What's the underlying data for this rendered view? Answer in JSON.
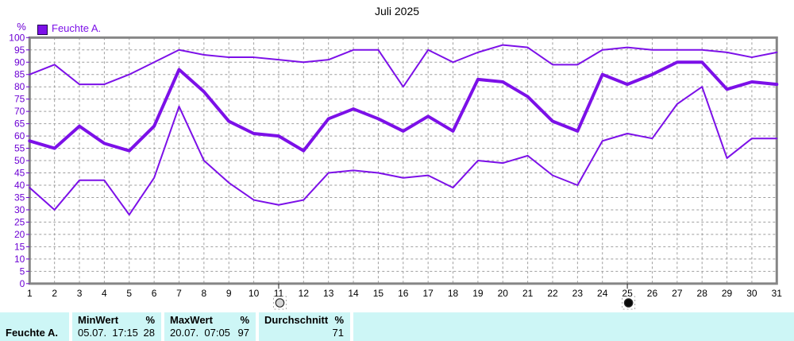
{
  "window": {
    "title": "Juli 2025"
  },
  "colors": {
    "series": "#7C10E8",
    "axis_text": "#6C00D4",
    "grid": "#9E9E9E",
    "frame": "#868686",
    "table_bg": "#CDF6F6",
    "day_label": "#000000"
  },
  "legend": {
    "label": "Feuchte A.",
    "unit": "%"
  },
  "chart_data": {
    "type": "line",
    "title": "Juli 2025",
    "ylabel": "%",
    "xlabel": "",
    "grid": true,
    "legend_position": "top-left",
    "ylim": [
      0,
      100
    ],
    "y_tick_step": 5,
    "x": [
      1,
      2,
      3,
      4,
      5,
      6,
      7,
      8,
      9,
      10,
      11,
      12,
      13,
      14,
      15,
      16,
      17,
      18,
      19,
      20,
      21,
      22,
      23,
      24,
      25,
      26,
      27,
      28,
      29,
      30,
      31
    ],
    "series": [
      {
        "key": "maximum",
        "name": "Feuchte A. Maximum",
        "values": [
          85,
          89,
          81,
          81,
          85,
          90,
          95,
          93,
          92,
          92,
          91,
          90,
          91,
          95,
          95,
          80,
          95,
          90,
          94,
          97,
          96,
          89,
          89,
          95,
          96,
          95,
          95,
          95,
          94,
          92,
          94
        ]
      },
      {
        "key": "minimum",
        "name": "Feuchte A. Minimum",
        "values": [
          39,
          30,
          42,
          42,
          28,
          43,
          72,
          50,
          41,
          34,
          32,
          34,
          45,
          46,
          45,
          43,
          44,
          39,
          50,
          49,
          52,
          44,
          40,
          58,
          61,
          59,
          73,
          80,
          51,
          59,
          59
        ]
      },
      {
        "key": "durchschnitt",
        "name": "Feuchte A. Durchschnitt",
        "thick": true,
        "values": [
          58,
          55,
          64,
          57,
          54,
          64,
          87,
          78,
          66,
          61,
          60,
          54,
          67,
          71,
          67,
          62,
          68,
          62,
          83,
          82,
          76,
          66,
          62,
          85,
          81,
          85,
          90,
          90,
          79,
          82,
          81
        ]
      }
    ],
    "markers": [
      {
        "day": 11,
        "phase": "full-moon"
      },
      {
        "day": 25,
        "phase": "new-moon"
      }
    ]
  },
  "footer": {
    "row_label": "Feuchte A.",
    "columns": [
      {
        "header": "MinWert",
        "unit": "%",
        "value_text": "05.07.  17:15",
        "value_num": "28"
      },
      {
        "header": "MaxWert",
        "unit": "%",
        "value_text": "20.07.  07:05",
        "value_num": "97"
      },
      {
        "header": "Durchschnitt",
        "unit": "%",
        "value_text": "",
        "value_num": "71"
      }
    ]
  }
}
